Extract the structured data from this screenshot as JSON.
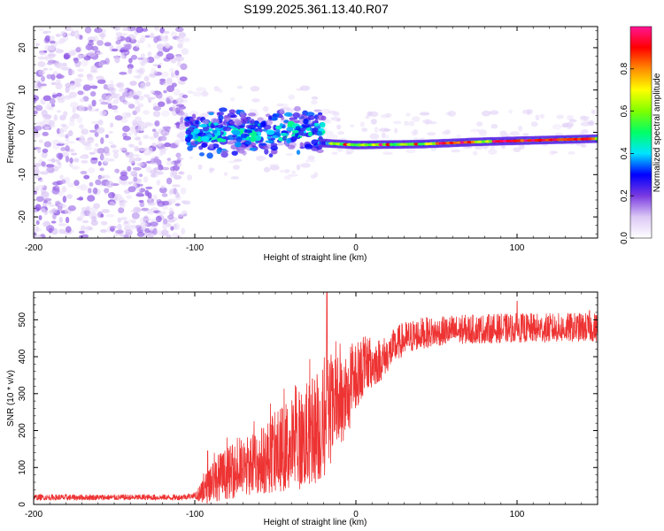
{
  "figure_title": "S199.2025.361.13.40.R07",
  "chart_data": [
    {
      "type": "heatmap",
      "title": "S199.2025.361.13.40.R07",
      "xlabel": "Height of straight line (km)",
      "ylabel": "Frequency (Hz)",
      "xlim": [
        -200,
        150
      ],
      "ylim": [
        -25,
        25
      ],
      "x_ticks": [
        -200,
        -100,
        0,
        100
      ],
      "x_tick_labels": [
        "-200",
        "-100",
        "0",
        "100"
      ],
      "y_ticks": [
        -20,
        -10,
        0,
        10,
        20
      ],
      "y_tick_labels": [
        "-20",
        "-10",
        "0",
        "10",
        "20"
      ],
      "colorbar": {
        "label": "Normalized spectral amplitude",
        "range": [
          0,
          1
        ],
        "ticks": [
          0.0,
          0.2,
          0.4,
          0.6,
          0.8
        ],
        "tick_labels": [
          "0.0",
          "0.2",
          "0.4",
          "0.6",
          "0.8"
        ],
        "colormap_stops": [
          "#ffffff",
          "#dcc8f5",
          "#7a3ae0",
          "#0000ff",
          "#00e5ff",
          "#00ff66",
          "#7fff00",
          "#ffff00",
          "#ff8c00",
          "#ff0000",
          "#ff1493"
        ]
      },
      "description_regions": [
        {
          "x_range": [
            -200,
            -105
          ],
          "frequency_range": [
            -25,
            25
          ],
          "amplitude": "low (noise, 0.05-0.2)"
        },
        {
          "x_range": [
            -105,
            -20
          ],
          "frequency_center": 0,
          "frequency_spread": 6,
          "amplitude": "0.2-0.5"
        },
        {
          "x_range": [
            -20,
            150
          ],
          "frequency_center_start": -3,
          "frequency_center_end": -1,
          "amplitude": "0.5-1.0"
        }
      ]
    },
    {
      "type": "line",
      "xlabel": "Height of straight line (km)",
      "ylabel": "SNR (10 * v/v)",
      "xlim": [
        -200,
        150
      ],
      "ylim": [
        0,
        575
      ],
      "x_ticks": [
        -200,
        -100,
        0,
        100
      ],
      "x_tick_labels": [
        "-200",
        "-100",
        "0",
        "100"
      ],
      "y_ticks": [
        0,
        100,
        200,
        300,
        400,
        500
      ],
      "y_tick_labels": [
        "0",
        "100",
        "200",
        "300",
        "400",
        "500"
      ],
      "series": [
        {
          "name": "SNR",
          "color": "#ee3333",
          "trend": {
            "x": [
              -200,
              -150,
              -110,
              -95,
              -90,
              -80,
              -70,
              -60,
              -50,
              -40,
              -30,
              -20,
              -15,
              -10,
              -5,
              0,
              5,
              10,
              15,
              20,
              25,
              30,
              40,
              50,
              60,
              80,
              100,
              120,
              140,
              150
            ],
            "y": [
              18,
              18,
              18,
              25,
              55,
              70,
              85,
              100,
              120,
              140,
              160,
              190,
              230,
              250,
              270,
              330,
              360,
              370,
              380,
              400,
              425,
              440,
              455,
              460,
              465,
              468,
              470,
              470,
              472,
              472
            ]
          },
          "noise_amplitude": {
            "x": [
              -200,
              -100,
              -90,
              -60,
              -40,
              -20,
              0,
              20,
              50,
              150
            ],
            "y": [
              8,
              8,
              60,
              90,
              130,
              160,
              90,
              50,
              40,
              40
            ]
          },
          "spikes": [
            {
              "x": -18,
              "y": 575
            },
            {
              "x": -27,
              "y": 340
            },
            {
              "x": 100,
              "y": 550
            },
            {
              "x": 145,
              "y": 525
            },
            {
              "x": -92,
              "y": 145
            }
          ]
        }
      ]
    }
  ]
}
